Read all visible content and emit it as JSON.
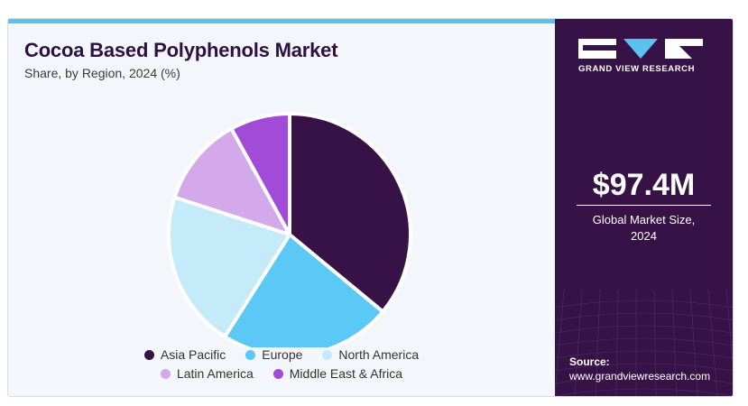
{
  "header": {
    "title": "Cocoa Based Polyphenols Market",
    "subtitle": "Share, by Region, 2024 (%)"
  },
  "chart_data": {
    "type": "pie",
    "title": "Cocoa Based Polyphenols Market",
    "subtitle": "Share, by Region, 2024 (%)",
    "categories": [
      "Asia Pacific",
      "Europe",
      "North America",
      "Latin America",
      "Middle East & Africa"
    ],
    "values": [
      36,
      23,
      21,
      12,
      8
    ],
    "colors": [
      "#371246",
      "#5bc8f5",
      "#c5ebfb",
      "#d4a9ec",
      "#a24bd8"
    ],
    "legend_placement": "bottom",
    "start": "top-clockwise"
  },
  "legend": {
    "row1": [
      {
        "label": "Asia Pacific",
        "color": "#371246"
      },
      {
        "label": "Europe",
        "color": "#5bc8f5"
      },
      {
        "label": "North America",
        "color": "#c5ebfb"
      }
    ],
    "row2": [
      {
        "label": "Latin America",
        "color": "#d4a9ec"
      },
      {
        "label": "Middle East & Africa",
        "color": "#a24bd8"
      }
    ]
  },
  "panel": {
    "brand": "GRAND VIEW RESEARCH",
    "market_value": "$97.4M",
    "market_label_line1": "Global Market Size,",
    "market_label_line2": "2024",
    "source_label": "Source:",
    "source_url": "www.grandviewresearch.com",
    "colors": {
      "background": "#371246",
      "accent": "#5bc2f0"
    }
  }
}
